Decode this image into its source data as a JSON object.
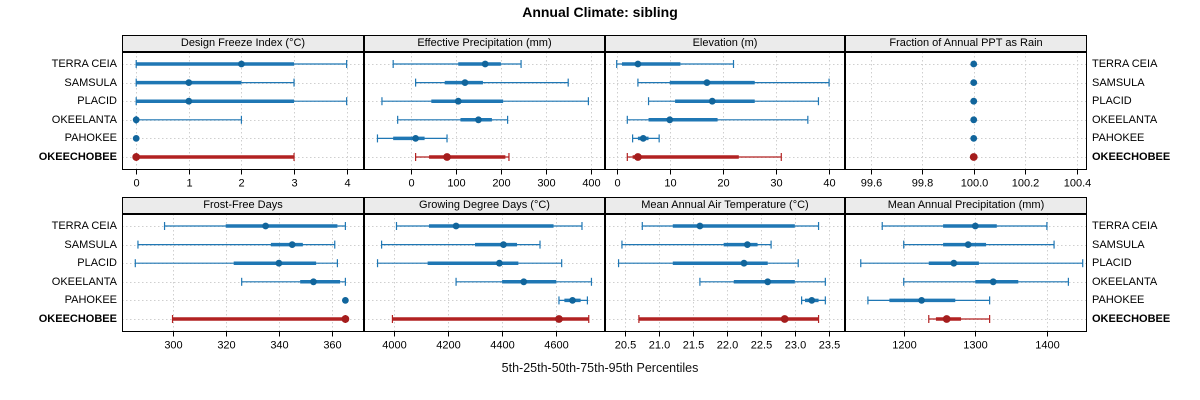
{
  "title": "Annual Climate: sibling",
  "footer": "5th-25th-50th-75th-95th Percentiles",
  "stations": [
    "TERRA CEIA",
    "SAMSULA",
    "PLACID",
    "OKEELANTA",
    "PAHOKEE",
    "OKEECHOBEE"
  ],
  "highlight_station": "OKEECHOBEE",
  "colors": {
    "line_blue": "#1f77b4",
    "dot_blue": "#11659c",
    "line_red": "#b22222",
    "dot_red": "#a51d1d",
    "grid": "#cfcfcf",
    "panel_border": "#000000",
    "header_bg": "#ebebeb"
  },
  "chart_data": [
    {
      "type": "scatter",
      "title": "Design Freeze Index (°C)",
      "xlim": [
        -0.27,
        4.33
      ],
      "ticks": [
        {
          "v": 0,
          "label": "0"
        },
        {
          "v": 1,
          "label": "1"
        },
        {
          "v": 2,
          "label": "2"
        },
        {
          "v": 3,
          "label": "3"
        },
        {
          "v": 4,
          "label": "4"
        }
      ],
      "series": [
        {
          "station": "TERRA CEIA",
          "p5": 0,
          "p25": 0,
          "p50": 2,
          "p75": 3,
          "p95": 4
        },
        {
          "station": "SAMSULA",
          "p5": 0,
          "p25": 0,
          "p50": 1,
          "p75": 2,
          "p95": 3
        },
        {
          "station": "PLACID",
          "p5": 0,
          "p25": 0,
          "p50": 1,
          "p75": 3,
          "p95": 4
        },
        {
          "station": "OKEELANTA",
          "p5": 0,
          "p25": 0,
          "p50": 0,
          "p75": 0,
          "p95": 2
        },
        {
          "station": "PAHOKEE",
          "p5": 0,
          "p25": 0,
          "p50": 0,
          "p75": 0,
          "p95": 0
        },
        {
          "station": "OKEECHOBEE",
          "p5": 0,
          "p25": 0,
          "p50": 0,
          "p75": 3,
          "p95": 3
        }
      ]
    },
    {
      "type": "scatter",
      "title": "Effective Precipitation (mm)",
      "xlim": [
        -105,
        432
      ],
      "ticks": [
        {
          "v": 0,
          "label": "0"
        },
        {
          "v": 100,
          "label": "100"
        },
        {
          "v": 200,
          "label": "200"
        },
        {
          "v": 300,
          "label": "300"
        },
        {
          "v": 400,
          "label": "400"
        }
      ],
      "series": [
        {
          "station": "TERRA CEIA",
          "p5": -40,
          "p25": 105,
          "p50": 165,
          "p75": 200,
          "p95": 245
        },
        {
          "station": "SAMSULA",
          "p5": 10,
          "p25": 75,
          "p50": 120,
          "p75": 160,
          "p95": 350
        },
        {
          "station": "PLACID",
          "p5": -65,
          "p25": 45,
          "p50": 105,
          "p75": 205,
          "p95": 395
        },
        {
          "station": "OKEELANTA",
          "p5": -30,
          "p25": 110,
          "p50": 150,
          "p75": 180,
          "p95": 215
        },
        {
          "station": "PAHOKEE",
          "p5": -75,
          "p25": -40,
          "p50": 10,
          "p75": 30,
          "p95": 80
        },
        {
          "station": "OKEECHOBEE",
          "p5": 10,
          "p25": 40,
          "p50": 80,
          "p75": 210,
          "p95": 218
        }
      ]
    },
    {
      "type": "scatter",
      "title": "Elevation (m)",
      "xlim": [
        -2.2,
        43
      ],
      "ticks": [
        {
          "v": 0,
          "label": "0"
        },
        {
          "v": 10,
          "label": "10"
        },
        {
          "v": 20,
          "label": "20"
        },
        {
          "v": 30,
          "label": "30"
        },
        {
          "v": 40,
          "label": "40"
        }
      ],
      "series": [
        {
          "station": "TERRA CEIA",
          "p5": 0,
          "p25": 1,
          "p50": 4,
          "p75": 12,
          "p95": 22
        },
        {
          "station": "SAMSULA",
          "p5": 4,
          "p25": 10,
          "p50": 17,
          "p75": 26,
          "p95": 40
        },
        {
          "station": "PLACID",
          "p5": 6,
          "p25": 11,
          "p50": 18,
          "p75": 26,
          "p95": 38
        },
        {
          "station": "OKEELANTA",
          "p5": 2,
          "p25": 6,
          "p50": 10,
          "p75": 19,
          "p95": 36
        },
        {
          "station": "PAHOKEE",
          "p5": 3,
          "p25": 4,
          "p50": 5,
          "p75": 6,
          "p95": 8
        },
        {
          "station": "OKEECHOBEE",
          "p5": 2,
          "p25": 3,
          "p50": 4,
          "p75": 23,
          "p95": 31
        }
      ]
    },
    {
      "type": "scatter",
      "title": "Fraction of Annual PPT as Rain",
      "xlim": [
        99.5,
        100.44
      ],
      "ticks": [
        {
          "v": 99.6,
          "label": "99.6"
        },
        {
          "v": 99.8,
          "label": "99.8"
        },
        {
          "v": 100.0,
          "label": "100.0"
        },
        {
          "v": 100.2,
          "label": "100.2"
        },
        {
          "v": 100.4,
          "label": "100.4"
        }
      ],
      "series": [
        {
          "station": "TERRA CEIA",
          "p5": 100,
          "p25": 100,
          "p50": 100,
          "p75": 100,
          "p95": 100
        },
        {
          "station": "SAMSULA",
          "p5": 100,
          "p25": 100,
          "p50": 100,
          "p75": 100,
          "p95": 100
        },
        {
          "station": "PLACID",
          "p5": 100,
          "p25": 100,
          "p50": 100,
          "p75": 100,
          "p95": 100
        },
        {
          "station": "OKEELANTA",
          "p5": 100,
          "p25": 100,
          "p50": 100,
          "p75": 100,
          "p95": 100
        },
        {
          "station": "PAHOKEE",
          "p5": 100,
          "p25": 100,
          "p50": 100,
          "p75": 100,
          "p95": 100
        },
        {
          "station": "OKEECHOBEE",
          "p5": 100,
          "p25": 100,
          "p50": 100,
          "p75": 100,
          "p95": 100
        }
      ]
    },
    {
      "type": "scatter",
      "title": "Frost-Free Days",
      "xlim": [
        281,
        372
      ],
      "ticks": [
        {
          "v": 300,
          "label": "300"
        },
        {
          "v": 320,
          "label": "320"
        },
        {
          "v": 340,
          "label": "340"
        },
        {
          "v": 360,
          "label": "360"
        }
      ],
      "series": [
        {
          "station": "TERRA CEIA",
          "p5": 297,
          "p25": 320,
          "p50": 335,
          "p75": 362,
          "p95": 365
        },
        {
          "station": "SAMSULA",
          "p5": 287,
          "p25": 337,
          "p50": 345,
          "p75": 349,
          "p95": 361
        },
        {
          "station": "PLACID",
          "p5": 286,
          "p25": 323,
          "p50": 340,
          "p75": 354,
          "p95": 362
        },
        {
          "station": "OKEELANTA",
          "p5": 326,
          "p25": 348,
          "p50": 353,
          "p75": 363,
          "p95": 365
        },
        {
          "station": "PAHOKEE",
          "p5": 365,
          "p25": 365,
          "p50": 365,
          "p75": 365,
          "p95": 365
        },
        {
          "station": "OKEECHOBEE",
          "p5": 300,
          "p25": 300,
          "p50": 365,
          "p75": 365,
          "p95": 365
        }
      ]
    },
    {
      "type": "scatter",
      "title": "Growing Degree Days (°C)",
      "xlim": [
        3890,
        4780
      ],
      "ticks": [
        {
          "v": 4000,
          "label": "4000"
        },
        {
          "v": 4200,
          "label": "4200"
        },
        {
          "v": 4400,
          "label": "4400"
        },
        {
          "v": 4600,
          "label": "4600"
        }
      ],
      "series": [
        {
          "station": "TERRA CEIA",
          "p5": 4010,
          "p25": 4130,
          "p50": 4230,
          "p75": 4590,
          "p95": 4695
        },
        {
          "station": "SAMSULA",
          "p5": 3955,
          "p25": 4300,
          "p50": 4405,
          "p75": 4455,
          "p95": 4540
        },
        {
          "station": "PLACID",
          "p5": 3940,
          "p25": 4125,
          "p50": 4390,
          "p75": 4460,
          "p95": 4620
        },
        {
          "station": "OKEELANTA",
          "p5": 4230,
          "p25": 4400,
          "p50": 4480,
          "p75": 4600,
          "p95": 4730
        },
        {
          "station": "PAHOKEE",
          "p5": 4610,
          "p25": 4630,
          "p50": 4660,
          "p75": 4690,
          "p95": 4715
        },
        {
          "station": "OKEECHOBEE",
          "p5": 3995,
          "p25": 3995,
          "p50": 4610,
          "p75": 4720,
          "p95": 4720
        }
      ]
    },
    {
      "type": "scatter",
      "title": "Mean Annual Air Temperature (°C)",
      "xlim": [
        20.2,
        23.74
      ],
      "ticks": [
        {
          "v": 20.5,
          "label": "20.5"
        },
        {
          "v": 21.0,
          "label": "21.0"
        },
        {
          "v": 21.5,
          "label": "21.5"
        },
        {
          "v": 22.0,
          "label": "22.0"
        },
        {
          "v": 22.5,
          "label": "22.5"
        },
        {
          "v": 23.0,
          "label": "23.0"
        },
        {
          "v": 23.5,
          "label": "23.5"
        }
      ],
      "series": [
        {
          "station": "TERRA CEIA",
          "p5": 20.75,
          "p25": 21.2,
          "p50": 21.6,
          "p75": 23.0,
          "p95": 23.35
        },
        {
          "station": "SAMSULA",
          "p5": 20.45,
          "p25": 21.95,
          "p50": 22.3,
          "p75": 22.45,
          "p95": 22.65
        },
        {
          "station": "PLACID",
          "p5": 20.4,
          "p25": 21.2,
          "p50": 22.25,
          "p75": 22.6,
          "p95": 23.05
        },
        {
          "station": "OKEELANTA",
          "p5": 21.6,
          "p25": 22.1,
          "p50": 22.6,
          "p75": 23.0,
          "p95": 23.45
        },
        {
          "station": "PAHOKEE",
          "p5": 23.1,
          "p25": 23.15,
          "p50": 23.25,
          "p75": 23.35,
          "p95": 23.45
        },
        {
          "station": "OKEECHOBEE",
          "p5": 20.7,
          "p25": 20.7,
          "p50": 22.85,
          "p75": 23.35,
          "p95": 23.35
        }
      ]
    },
    {
      "type": "scatter",
      "title": "Mean Annual Precipitation (mm)",
      "xlim": [
        1118,
        1456
      ],
      "ticks": [
        {
          "v": 1200,
          "label": "1200"
        },
        {
          "v": 1300,
          "label": "1300"
        },
        {
          "v": 1400,
          "label": "1400"
        }
      ],
      "series": [
        {
          "station": "TERRA CEIA",
          "p5": 1170,
          "p25": 1255,
          "p50": 1300,
          "p75": 1330,
          "p95": 1400
        },
        {
          "station": "SAMSULA",
          "p5": 1200,
          "p25": 1255,
          "p50": 1290,
          "p75": 1315,
          "p95": 1410
        },
        {
          "station": "PLACID",
          "p5": 1140,
          "p25": 1235,
          "p50": 1270,
          "p75": 1305,
          "p95": 1450
        },
        {
          "station": "OKEELANTA",
          "p5": 1200,
          "p25": 1300,
          "p50": 1325,
          "p75": 1360,
          "p95": 1430
        },
        {
          "station": "PAHOKEE",
          "p5": 1150,
          "p25": 1180,
          "p50": 1225,
          "p75": 1272,
          "p95": 1320
        },
        {
          "station": "OKEECHOBEE",
          "p5": 1235,
          "p25": 1245,
          "p50": 1260,
          "p75": 1280,
          "p95": 1320
        }
      ]
    }
  ]
}
